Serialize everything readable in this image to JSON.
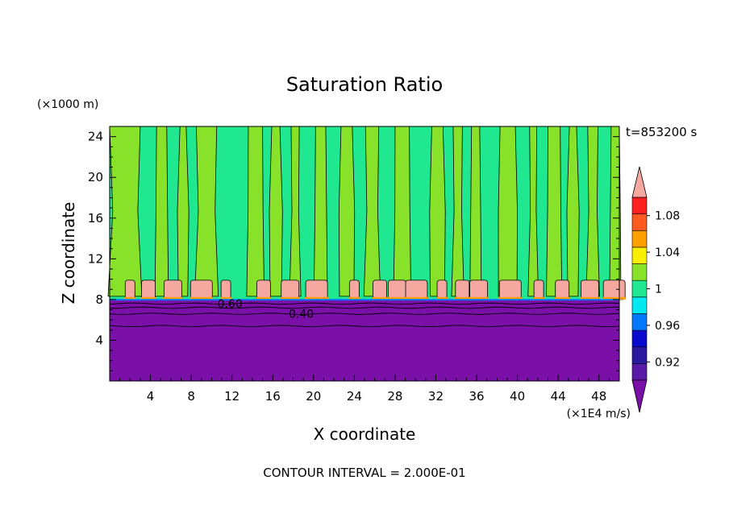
{
  "chart_data": {
    "type": "contour",
    "title": "Saturation Ratio",
    "xlabel": "X coordinate",
    "ylabel": "Z coordinate",
    "x_unit": "(×1E4 m/s)",
    "y_unit": "(×1000 m)",
    "time_label": "t=853200 s",
    "contour_interval_label": "CONTOUR INTERVAL = 2.000E-01",
    "xlim": [
      0,
      50
    ],
    "ylim": [
      0,
      25
    ],
    "x_ticks": [
      4,
      8,
      12,
      16,
      20,
      24,
      28,
      32,
      36,
      40,
      44,
      48
    ],
    "y_ticks": [
      4,
      8,
      12,
      16,
      20,
      24
    ],
    "contour_labels": [
      {
        "text": "0.60",
        "x": 11.8,
        "y": 7.6
      },
      {
        "text": "0.40",
        "x": 18.8,
        "y": 6.6
      }
    ],
    "colorbar": {
      "tick_labels": [
        "0.92",
        "0.96",
        "1",
        "1.04",
        "1.08"
      ],
      "levels": [
        0.9,
        0.92,
        0.94,
        0.96,
        0.98,
        1.0,
        1.02,
        1.04,
        1.06,
        1.08,
        1.1
      ],
      "colors": [
        "#5a1aa8",
        "#2a1aa0",
        "#0a0acc",
        "#0078ff",
        "#00e8f0",
        "#1fe890",
        "#88e22a",
        "#f8f000",
        "#ffa000",
        "#ff5a20",
        "#ff2020"
      ],
      "under_color": "#7a10a8",
      "over_color": "#f5a8a0"
    },
    "field": {
      "subsat_layer_top": 7.9,
      "cloud_band": [
        8.0,
        9.9
      ],
      "cloud_color": "#f5a8a0",
      "fill_low": "#7a10a8",
      "fill_cyan": "#20e890",
      "fill_green": "#88e22a",
      "green_columns": [
        [
          0,
          3.0
        ],
        [
          4.6,
          5.6
        ],
        [
          6.9,
          7.5
        ],
        [
          8.5,
          10.5
        ],
        [
          13.6,
          15.0
        ],
        [
          15.9,
          16.7
        ],
        [
          17.8,
          18.6
        ],
        [
          20.2,
          21.2
        ],
        [
          22.7,
          23.8
        ],
        [
          25.1,
          26.4
        ],
        [
          28.0,
          29.4
        ],
        [
          31.6,
          32.7
        ],
        [
          33.7,
          34.6
        ],
        [
          35.5,
          36.3
        ],
        [
          38.3,
          39.8
        ],
        [
          41.2,
          41.9
        ],
        [
          43.0,
          44.2
        ],
        [
          45.1,
          45.8
        ],
        [
          46.9,
          47.9
        ],
        [
          49.2,
          50.0
        ]
      ],
      "cloud_blobs": [
        2.0,
        3.8,
        6.2,
        9.0,
        11.4,
        15.1,
        17.7,
        20.3,
        24.0,
        26.5,
        28.2,
        30.1,
        32.6,
        34.6,
        36.2,
        39.3,
        42.1,
        44.4,
        47.1,
        49.5
      ]
    }
  }
}
